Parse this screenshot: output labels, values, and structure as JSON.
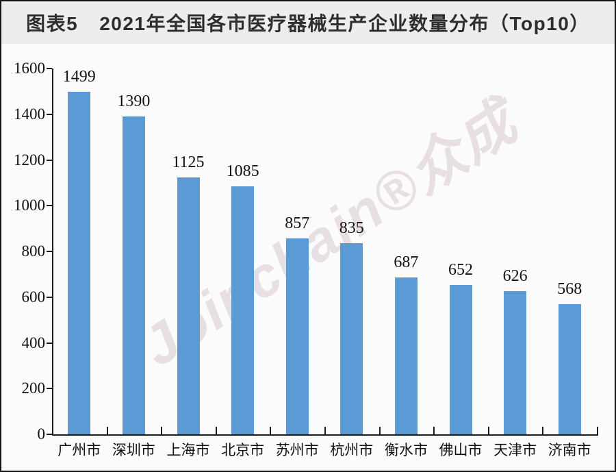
{
  "page": {
    "title": "图表5  2021年全国各市医疗器械生产企业数量分布（Top10）"
  },
  "watermark": {
    "text": "Joinchain®众成"
  },
  "chart_data": {
    "type": "bar",
    "title": "图表5  2021年全国各市医疗器械生产企业数量分布（Top10）",
    "categories": [
      "广州市",
      "深圳市",
      "上海市",
      "北京市",
      "苏州市",
      "杭州市",
      "衡水市",
      "佛山市",
      "天津市",
      "济南市"
    ],
    "values": [
      1499,
      1390,
      1125,
      1085,
      857,
      835,
      687,
      652,
      626,
      568
    ],
    "xlabel": "",
    "ylabel": "",
    "ylim": [
      0,
      1600
    ],
    "yticks": [
      0,
      200,
      400,
      600,
      800,
      1000,
      1200,
      1400,
      1600
    ],
    "grid": false,
    "legend_position": "none",
    "data_labels": true
  },
  "colors": {
    "bar": "#5b9bd5",
    "axis": "#1c1c1c",
    "title_text": "#2e2e2e",
    "title_band_bg": "#ededed",
    "chart_bg": "#fbfbfb",
    "frame_border": "#141414",
    "watermark": "rgba(201,180,189,0.38)"
  }
}
